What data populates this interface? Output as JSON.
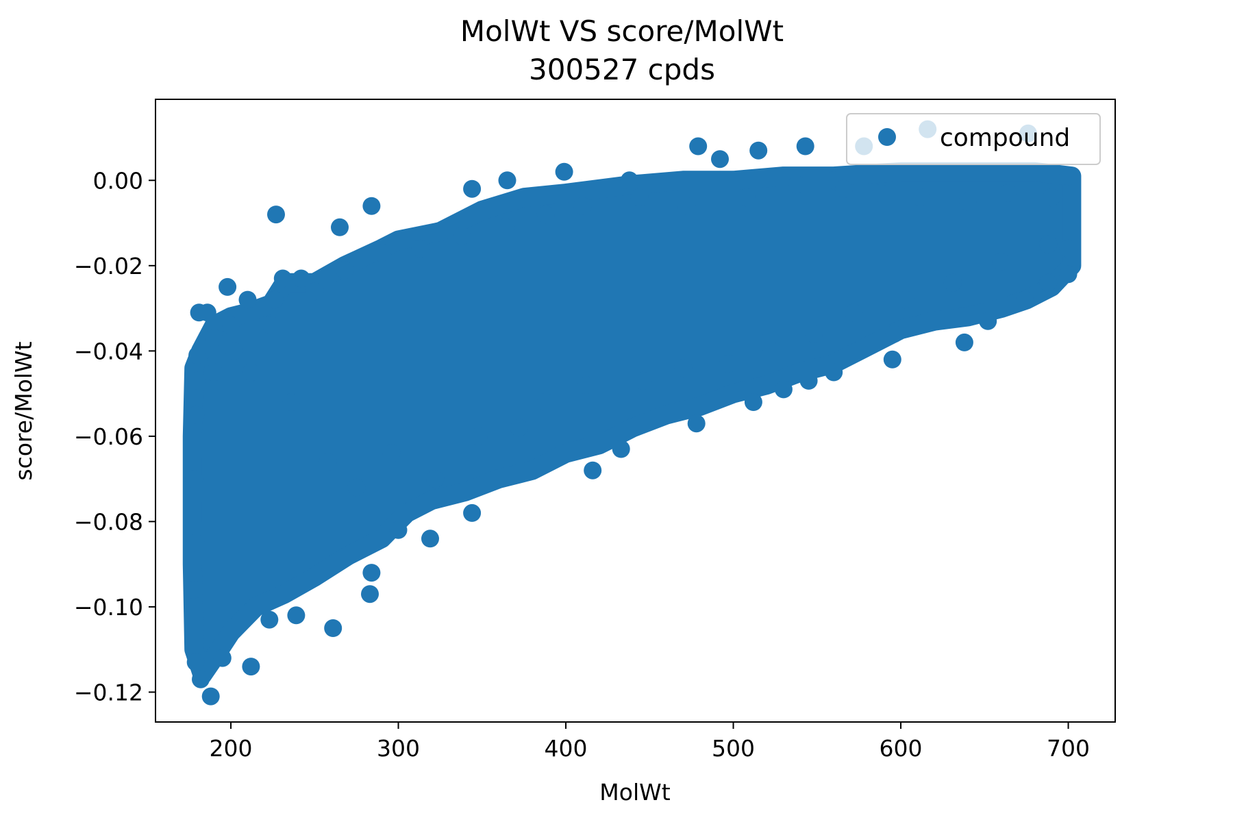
{
  "chart_data": {
    "type": "scatter",
    "title": "MolWt VS score/MolWt",
    "subtitle": "300527 cpds",
    "xlabel": "MolWt",
    "ylabel": "score/MolWt",
    "xlim": [
      155,
      728
    ],
    "ylim": [
      -0.127,
      0.019
    ],
    "xticks": [
      200,
      300,
      400,
      500,
      600,
      700
    ],
    "yticks": [
      0.0,
      -0.02,
      -0.04,
      -0.06,
      -0.08,
      -0.1,
      -0.12
    ],
    "xtick_labels": [
      "200",
      "300",
      "400",
      "500",
      "600",
      "700"
    ],
    "ytick_labels": [
      "0.00",
      "−0.02",
      "−0.04",
      "−0.06",
      "−0.08",
      "−0.10",
      "−0.12"
    ],
    "grid": false,
    "legend": {
      "position": "upper right",
      "entries": [
        "compound"
      ]
    },
    "colors": {
      "series": "#2077b4",
      "axis": "#000000"
    },
    "series": [
      {
        "name": "compound",
        "points": [
          [
            181,
            -0.031
          ],
          [
            186,
            -0.031
          ],
          [
            180,
            -0.041
          ],
          [
            198,
            -0.025
          ],
          [
            210,
            -0.028
          ],
          [
            226,
            -0.028
          ],
          [
            227,
            -0.008
          ],
          [
            231,
            -0.023
          ],
          [
            242,
            -0.023
          ],
          [
            265,
            -0.011
          ],
          [
            284,
            -0.006
          ],
          [
            344,
            -0.002
          ],
          [
            365,
            0.0
          ],
          [
            399,
            0.002
          ],
          [
            438,
            0.0
          ],
          [
            479,
            0.008
          ],
          [
            492,
            0.005
          ],
          [
            515,
            0.007
          ],
          [
            543,
            0.008
          ],
          [
            560,
            0.0
          ],
          [
            578,
            0.008
          ],
          [
            616,
            0.012
          ],
          [
            676,
            0.011
          ],
          [
            700,
            0.001
          ],
          [
            700,
            -0.016
          ],
          [
            700,
            -0.022
          ],
          [
            688,
            -0.024
          ],
          [
            674,
            -0.028
          ],
          [
            652,
            -0.033
          ],
          [
            638,
            -0.038
          ],
          [
            596,
            -0.036
          ],
          [
            595,
            -0.042
          ],
          [
            560,
            -0.045
          ],
          [
            545,
            -0.047
          ],
          [
            530,
            -0.049
          ],
          [
            512,
            -0.052
          ],
          [
            478,
            -0.057
          ],
          [
            433,
            -0.063
          ],
          [
            416,
            -0.068
          ],
          [
            344,
            -0.078
          ],
          [
            319,
            -0.084
          ],
          [
            300,
            -0.082
          ],
          [
            284,
            -0.092
          ],
          [
            283,
            -0.097
          ],
          [
            261,
            -0.105
          ],
          [
            239,
            -0.102
          ],
          [
            223,
            -0.103
          ],
          [
            212,
            -0.114
          ],
          [
            195,
            -0.112
          ],
          [
            188,
            -0.121
          ],
          [
            182,
            -0.117
          ],
          [
            179,
            -0.113
          ],
          [
            178,
            -0.096
          ],
          [
            179,
            -0.085
          ],
          [
            178,
            -0.07
          ],
          [
            179,
            -0.055
          ],
          [
            180,
            -0.047
          ],
          [
            190,
            -0.037
          ],
          [
            200,
            -0.034
          ],
          [
            212,
            -0.045
          ],
          [
            236,
            -0.052
          ],
          [
            258,
            -0.066
          ],
          [
            275,
            -0.072
          ],
          [
            296,
            -0.064
          ],
          [
            322,
            -0.07
          ],
          [
            348,
            -0.06
          ],
          [
            372,
            -0.058
          ],
          [
            388,
            -0.052
          ],
          [
            412,
            -0.048
          ],
          [
            446,
            -0.047
          ],
          [
            470,
            -0.044
          ],
          [
            497,
            -0.043
          ],
          [
            520,
            -0.038
          ],
          [
            548,
            -0.036
          ],
          [
            572,
            -0.031
          ],
          [
            603,
            -0.028
          ],
          [
            631,
            -0.024
          ],
          [
            660,
            -0.019
          ],
          [
            688,
            -0.015
          ],
          [
            690,
            -0.004
          ],
          [
            664,
            -0.003
          ],
          [
            640,
            -0.005
          ],
          [
            612,
            -0.004
          ],
          [
            588,
            -0.003
          ],
          [
            566,
            -0.002
          ],
          [
            538,
            -0.001
          ],
          [
            508,
            -0.004
          ],
          [
            472,
            -0.006
          ],
          [
            444,
            -0.004
          ],
          [
            410,
            -0.006
          ],
          [
            388,
            -0.008
          ],
          [
            364,
            -0.011
          ],
          [
            338,
            -0.013
          ],
          [
            313,
            -0.016
          ],
          [
            290,
            -0.017
          ],
          [
            268,
            -0.021
          ],
          [
            250,
            -0.026
          ],
          [
            224,
            -0.034
          ],
          [
            202,
            -0.04
          ],
          [
            190,
            -0.045
          ]
        ]
      }
    ],
    "cloud": {
      "upper": [
        [
          178,
          -0.044
        ],
        [
          182,
          -0.04
        ],
        [
          190,
          -0.034
        ],
        [
          200,
          -0.032
        ],
        [
          210,
          -0.031
        ],
        [
          224,
          -0.029
        ],
        [
          232,
          -0.024
        ],
        [
          250,
          -0.024
        ],
        [
          268,
          -0.02
        ],
        [
          290,
          -0.016
        ],
        [
          300,
          -0.014
        ],
        [
          325,
          -0.012
        ],
        [
          350,
          -0.007
        ],
        [
          375,
          -0.004
        ],
        [
          400,
          -0.003
        ],
        [
          440,
          -0.001
        ],
        [
          470,
          0.0
        ],
        [
          500,
          0.0
        ],
        [
          530,
          0.001
        ],
        [
          560,
          0.001
        ],
        [
          600,
          0.002
        ],
        [
          640,
          0.002
        ],
        [
          680,
          0.002
        ],
        [
          702,
          0.001
        ]
      ],
      "lower": [
        [
          702,
          -0.02
        ],
        [
          690,
          -0.025
        ],
        [
          675,
          -0.028
        ],
        [
          660,
          -0.03
        ],
        [
          640,
          -0.032
        ],
        [
          620,
          -0.033
        ],
        [
          600,
          -0.035
        ],
        [
          580,
          -0.039
        ],
        [
          560,
          -0.043
        ],
        [
          540,
          -0.045
        ],
        [
          520,
          -0.048
        ],
        [
          500,
          -0.05
        ],
        [
          480,
          -0.053
        ],
        [
          460,
          -0.055
        ],
        [
          440,
          -0.058
        ],
        [
          420,
          -0.062
        ],
        [
          400,
          -0.064
        ],
        [
          380,
          -0.068
        ],
        [
          360,
          -0.07
        ],
        [
          340,
          -0.073
        ],
        [
          320,
          -0.075
        ],
        [
          305,
          -0.078
        ],
        [
          290,
          -0.084
        ],
        [
          270,
          -0.088
        ],
        [
          250,
          -0.093
        ],
        [
          232,
          -0.097
        ],
        [
          215,
          -0.1
        ],
        [
          200,
          -0.106
        ],
        [
          190,
          -0.112
        ],
        [
          183,
          -0.116
        ],
        [
          178,
          -0.11
        ],
        [
          177,
          -0.09
        ],
        [
          177,
          -0.06
        ]
      ]
    }
  }
}
